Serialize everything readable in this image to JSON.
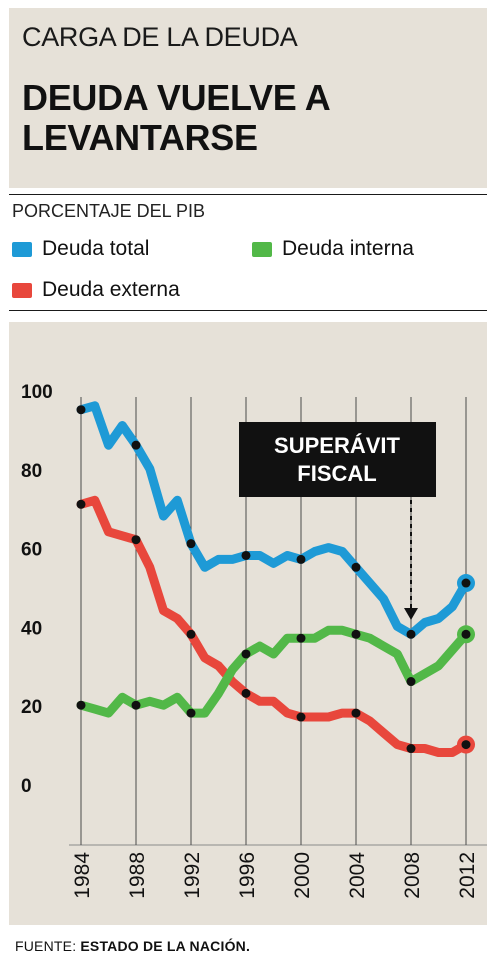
{
  "header": {
    "kicker": "CARGA DE LA DEUDA",
    "title": "DEUDA VUELVE A LEVANTARSE"
  },
  "unit_label": "PORCENTAJE DEL PIB",
  "legend": [
    {
      "label": "Deuda total",
      "color": "#1e9ad6"
    },
    {
      "label": "Deuda interna",
      "color": "#52b848"
    },
    {
      "label": "Deuda externa",
      "color": "#e8473c"
    }
  ],
  "annotation": {
    "line1": "SUPERÁVIT",
    "line2": "FISCAL",
    "year": 2008
  },
  "source": {
    "prefix": "FUENTE: ",
    "name": "ESTADO DE LA NACIÓN."
  },
  "chart_data": {
    "type": "line",
    "x": [
      1984,
      1985,
      1986,
      1987,
      1988,
      1989,
      1990,
      1991,
      1992,
      1993,
      1994,
      1995,
      1996,
      1997,
      1998,
      1999,
      2000,
      2001,
      2002,
      2003,
      2004,
      2005,
      2006,
      2007,
      2008,
      2009,
      2010,
      2011,
      2012
    ],
    "xticks": [
      1984,
      1988,
      1992,
      1996,
      2000,
      2004,
      2008,
      2012
    ],
    "yticks": [
      0,
      20,
      40,
      60,
      80,
      100
    ],
    "ylim": [
      0,
      100
    ],
    "title": "",
    "xlabel": "",
    "ylabel": "",
    "series": [
      {
        "name": "Deuda total",
        "color": "#1e9ad6",
        "values": [
          95,
          96,
          86,
          91,
          86,
          80,
          68,
          72,
          61,
          55,
          57,
          57,
          58,
          58,
          56,
          58,
          57,
          59,
          60,
          59,
          55,
          51,
          47,
          40,
          38,
          41,
          42,
          45,
          51
        ]
      },
      {
        "name": "Deuda interna",
        "color": "#52b848",
        "values": [
          20,
          19,
          18,
          22,
          20,
          21,
          20,
          22,
          18,
          18,
          23,
          29,
          33,
          35,
          33,
          37,
          37,
          37,
          39,
          39,
          38,
          37,
          35,
          33,
          26,
          28,
          30,
          34,
          38
        ]
      },
      {
        "name": "Deuda externa",
        "color": "#e8473c",
        "values": [
          71,
          72,
          64,
          63,
          62,
          55,
          44,
          42,
          38,
          32,
          30,
          26,
          23,
          21,
          21,
          18,
          17,
          17,
          17,
          18,
          18,
          16,
          13,
          10,
          9,
          9,
          8,
          8,
          10
        ]
      }
    ]
  }
}
